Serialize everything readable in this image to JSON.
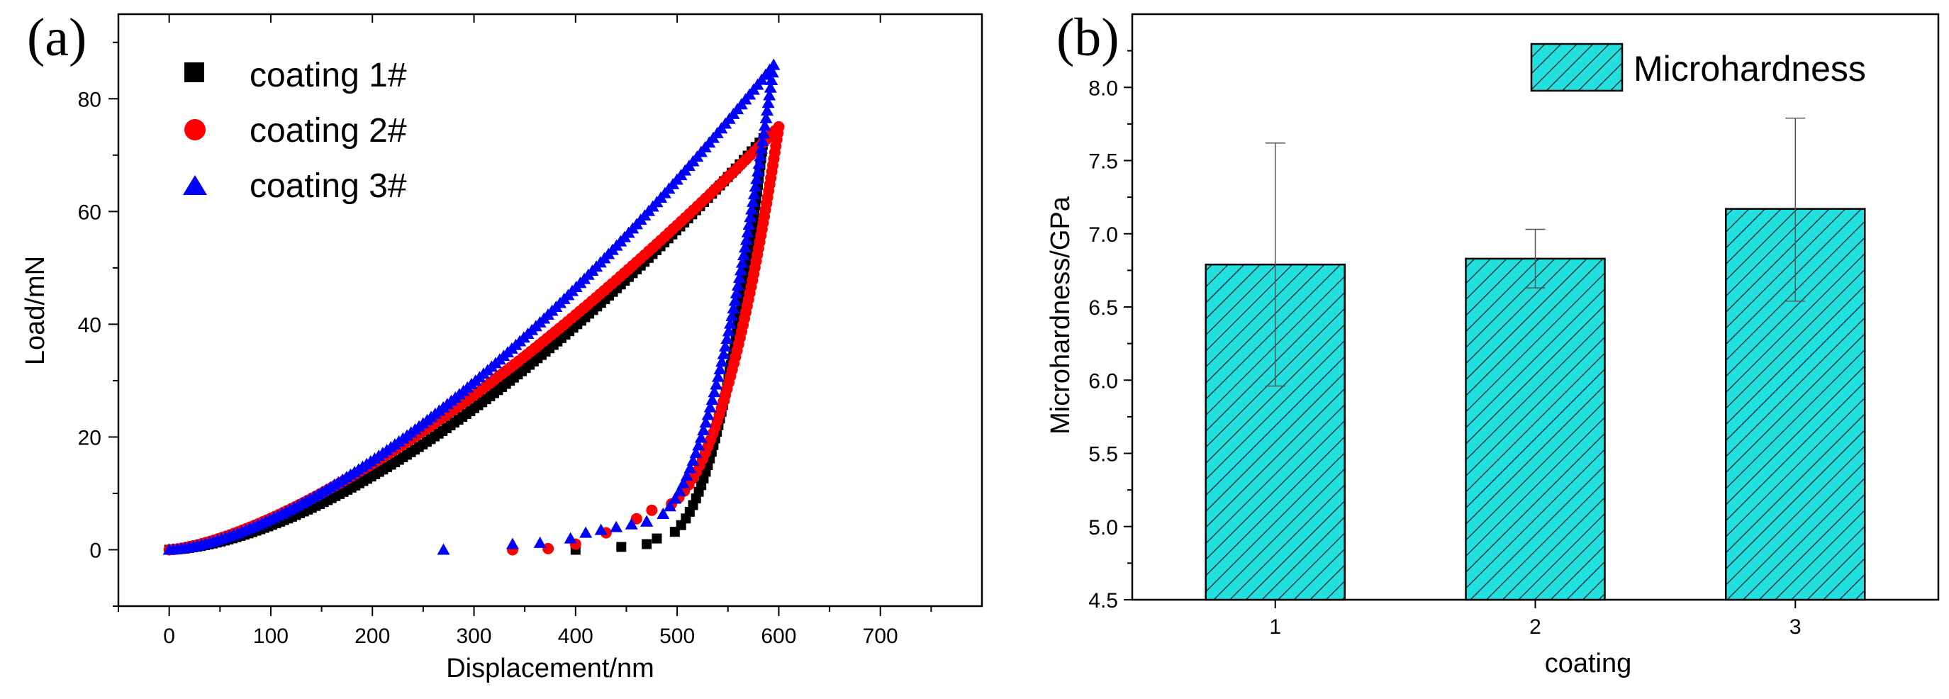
{
  "chart_data": [
    {
      "panel": "(a)",
      "type": "scatter",
      "title": "",
      "xlabel": "Displacement/nm",
      "ylabel": "Load/mN",
      "xlim": [
        -50,
        800
      ],
      "ylim": [
        -10,
        95
      ],
      "xticks": [
        0,
        100,
        200,
        300,
        400,
        500,
        600,
        700
      ],
      "yticks": [
        0,
        20,
        40,
        60,
        80
      ],
      "legend_position": "top-left",
      "series": [
        {
          "name": "coating 1#",
          "marker": "square",
          "color": "#000000",
          "loading": {
            "max_depth": 585,
            "max_load": 73,
            "exponent": 1.6
          },
          "unloading": {
            "from": [
              585,
              73
            ],
            "to": [
              480,
              2
            ],
            "exponent": 2.3
          },
          "extra_points": [
            [
              400,
              0
            ],
            [
              445,
              0.5
            ],
            [
              470,
              1.0
            ]
          ]
        },
        {
          "name": "coating 2#",
          "marker": "circle",
          "color": "#ff0000",
          "loading": {
            "max_depth": 600,
            "max_load": 75,
            "exponent": 1.45
          },
          "unloading": {
            "from": [
              600,
              75
            ],
            "to": [
              475,
              7
            ],
            "exponent": 2.2
          },
          "extra_points": [
            [
              338,
              0
            ],
            [
              373,
              0.2
            ],
            [
              400,
              1.0
            ],
            [
              430,
              3.0
            ],
            [
              460,
              5.5
            ]
          ]
        },
        {
          "name": "coating 3#",
          "marker": "triangle",
          "color": "#0000ff",
          "loading": {
            "max_depth": 595,
            "max_load": 86,
            "exponent": 1.55
          },
          "unloading": {
            "from": [
              595,
              86
            ],
            "to": [
              470,
              5
            ],
            "exponent": 2.0
          },
          "extra_points": [
            [
              270,
              0
            ],
            [
              338,
              1.0
            ],
            [
              365,
              1.2
            ],
            [
              395,
              2.0
            ],
            [
              410,
              3.0
            ],
            [
              425,
              3.5
            ],
            [
              440,
              4.0
            ],
            [
              455,
              4.5
            ],
            [
              470,
              5.0
            ]
          ]
        }
      ]
    },
    {
      "panel": "(b)",
      "type": "bar",
      "title": "",
      "xlabel": "coating",
      "ylabel": "Microhardness/GPa",
      "categories": [
        "1",
        "2",
        "3"
      ],
      "ylim": [
        4.5,
        8.5
      ],
      "yticks": [
        "4.5",
        "5.0",
        "5.5",
        "6.0",
        "6.5",
        "7.0",
        "7.5",
        "8.0"
      ],
      "series": [
        {
          "name": "Microhardness",
          "values": [
            6.79,
            6.83,
            7.17
          ],
          "error_low": [
            5.96,
            6.63,
            6.54
          ],
          "error_high": [
            7.62,
            7.03,
            7.79
          ]
        }
      ],
      "legend_position": "top-right",
      "bar_color": "#22e0e0",
      "hatch_color": "#1a3a3a"
    }
  ]
}
